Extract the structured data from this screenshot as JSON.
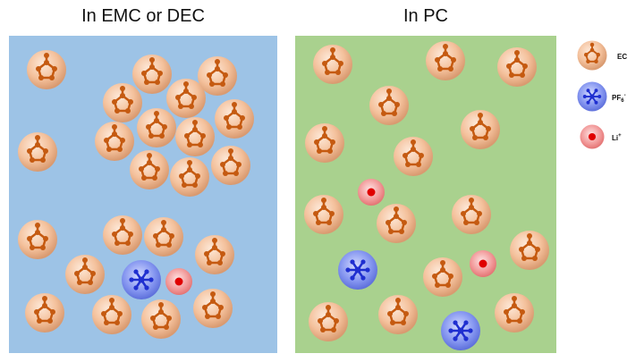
{
  "panels": [
    {
      "title": "In EMC or DEC"
    },
    {
      "title": "In PC"
    }
  ],
  "legend": {
    "ec": "EC",
    "pf6": {
      "base": "PF",
      "sub": "6",
      "sup": "-"
    },
    "li": {
      "base": "Li",
      "sup": "+"
    }
  }
}
